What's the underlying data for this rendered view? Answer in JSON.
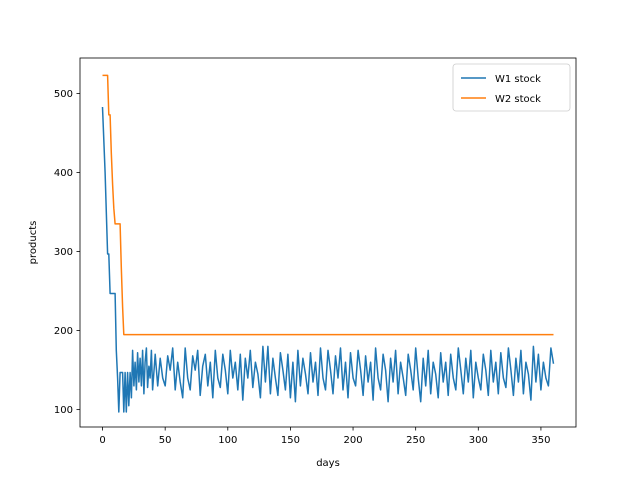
{
  "chart_data": {
    "type": "line",
    "title": "",
    "xlabel": "days",
    "ylabel": "products",
    "xlim": [
      -18,
      378
    ],
    "ylim": [
      78,
      545
    ],
    "xticks": [
      0,
      50,
      100,
      150,
      200,
      250,
      300,
      350
    ],
    "yticks": [
      100,
      200,
      300,
      400,
      500
    ],
    "grid": false,
    "legend_position": "top-right",
    "series": [
      {
        "name": "W1 stock",
        "color": "#1f77b4",
        "points": [
          [
            0,
            483
          ],
          [
            2,
            400
          ],
          [
            4,
            297
          ],
          [
            5,
            297
          ],
          [
            6,
            247
          ],
          [
            7,
            247
          ],
          [
            8,
            247
          ],
          [
            9,
            247
          ],
          [
            10,
            247
          ],
          [
            11,
            175
          ],
          [
            12,
            140
          ],
          [
            13,
            97
          ],
          [
            14,
            147
          ],
          [
            15,
            147
          ],
          [
            16,
            147
          ],
          [
            17,
            97
          ],
          [
            18,
            147
          ],
          [
            19,
            97
          ],
          [
            20,
            147
          ],
          [
            21,
            105
          ],
          [
            22,
            147
          ],
          [
            23,
            115
          ],
          [
            24,
            175
          ],
          [
            25,
            130
          ],
          [
            26,
            160
          ],
          [
            27,
            125
          ],
          [
            28,
            172
          ],
          [
            29,
            135
          ],
          [
            30,
            165
          ],
          [
            31,
            130
          ],
          [
            32,
            175
          ],
          [
            33,
            120
          ],
          [
            34,
            160
          ],
          [
            35,
            178
          ],
          [
            36,
            128
          ],
          [
            37,
            155
          ],
          [
            38,
            140
          ],
          [
            39,
            175
          ],
          [
            40,
            125
          ],
          [
            42,
            170
          ],
          [
            44,
            130
          ],
          [
            46,
            165
          ],
          [
            48,
            140
          ],
          [
            50,
            130
          ],
          [
            52,
            168
          ],
          [
            54,
            150
          ],
          [
            56,
            178
          ],
          [
            58,
            125
          ],
          [
            60,
            160
          ],
          [
            62,
            135
          ],
          [
            64,
            115
          ],
          [
            66,
            178
          ],
          [
            68,
            140
          ],
          [
            70,
            125
          ],
          [
            72,
            168
          ],
          [
            74,
            150
          ],
          [
            76,
            175
          ],
          [
            78,
            118
          ],
          [
            80,
            155
          ],
          [
            82,
            170
          ],
          [
            84,
            130
          ],
          [
            86,
            160
          ],
          [
            88,
            115
          ],
          [
            90,
            175
          ],
          [
            92,
            140
          ],
          [
            94,
            128
          ],
          [
            96,
            170
          ],
          [
            98,
            150
          ],
          [
            100,
            120
          ],
          [
            102,
            175
          ],
          [
            104,
            140
          ],
          [
            106,
            160
          ],
          [
            108,
            125
          ],
          [
            110,
            170
          ],
          [
            112,
            112
          ],
          [
            114,
            165
          ],
          [
            116,
            140
          ],
          [
            118,
            175
          ],
          [
            120,
            128
          ],
          [
            122,
            160
          ],
          [
            124,
            145
          ],
          [
            126,
            115
          ],
          [
            128,
            180
          ],
          [
            130,
            135
          ],
          [
            132,
            180
          ],
          [
            134,
            120
          ],
          [
            136,
            165
          ],
          [
            138,
            140
          ],
          [
            140,
            118
          ],
          [
            142,
            172
          ],
          [
            144,
            150
          ],
          [
            146,
            125
          ],
          [
            148,
            170
          ],
          [
            150,
            115
          ],
          [
            152,
            160
          ],
          [
            154,
            110
          ],
          [
            156,
            175
          ],
          [
            158,
            130
          ],
          [
            160,
            165
          ],
          [
            162,
            145
          ],
          [
            164,
            120
          ],
          [
            166,
            172
          ],
          [
            168,
            135
          ],
          [
            170,
            160
          ],
          [
            172,
            118
          ],
          [
            174,
            178
          ],
          [
            176,
            140
          ],
          [
            178,
            125
          ],
          [
            180,
            175
          ],
          [
            182,
            150
          ],
          [
            184,
            120
          ],
          [
            186,
            168
          ],
          [
            188,
            140
          ],
          [
            190,
            178
          ],
          [
            192,
            125
          ],
          [
            194,
            160
          ],
          [
            196,
            115
          ],
          [
            198,
            172
          ],
          [
            200,
            140
          ],
          [
            202,
            130
          ],
          [
            204,
            175
          ],
          [
            206,
            150
          ],
          [
            208,
            118
          ],
          [
            210,
            168
          ],
          [
            212,
            135
          ],
          [
            214,
            160
          ],
          [
            216,
            112
          ],
          [
            218,
            178
          ],
          [
            220,
            140
          ],
          [
            222,
            125
          ],
          [
            224,
            170
          ],
          [
            226,
            150
          ],
          [
            228,
            110
          ],
          [
            230,
            165
          ],
          [
            232,
            135
          ],
          [
            234,
            175
          ],
          [
            236,
            120
          ],
          [
            238,
            160
          ],
          [
            240,
            140
          ],
          [
            242,
            118
          ],
          [
            244,
            170
          ],
          [
            246,
            150
          ],
          [
            248,
            125
          ],
          [
            250,
            178
          ],
          [
            252,
            140
          ],
          [
            254,
            110
          ],
          [
            256,
            165
          ],
          [
            258,
            130
          ],
          [
            260,
            175
          ],
          [
            262,
            120
          ],
          [
            264,
            160
          ],
          [
            266,
            145
          ],
          [
            268,
            115
          ],
          [
            270,
            172
          ],
          [
            272,
            135
          ],
          [
            274,
            160
          ],
          [
            276,
            118
          ],
          [
            278,
            170
          ],
          [
            280,
            140
          ],
          [
            282,
            125
          ],
          [
            284,
            178
          ],
          [
            286,
            150
          ],
          [
            288,
            120
          ],
          [
            290,
            165
          ],
          [
            292,
            135
          ],
          [
            294,
            175
          ],
          [
            296,
            115
          ],
          [
            298,
            160
          ],
          [
            300,
            140
          ],
          [
            302,
            125
          ],
          [
            304,
            170
          ],
          [
            306,
            150
          ],
          [
            308,
            118
          ],
          [
            310,
            175
          ],
          [
            312,
            135
          ],
          [
            314,
            160
          ],
          [
            316,
            120
          ],
          [
            318,
            172
          ],
          [
            320,
            140
          ],
          [
            322,
            128
          ],
          [
            324,
            178
          ],
          [
            326,
            150
          ],
          [
            328,
            118
          ],
          [
            330,
            165
          ],
          [
            332,
            135
          ],
          [
            334,
            175
          ],
          [
            336,
            120
          ],
          [
            338,
            160
          ],
          [
            340,
            145
          ],
          [
            342,
            112
          ],
          [
            344,
            180
          ],
          [
            346,
            135
          ],
          [
            348,
            170
          ],
          [
            350,
            125
          ],
          [
            352,
            160
          ],
          [
            354,
            140
          ],
          [
            356,
            130
          ],
          [
            358,
            178
          ],
          [
            360,
            158
          ]
        ]
      },
      {
        "name": "W2 stock",
        "color": "#ff7f0e",
        "points": [
          [
            0,
            523
          ],
          [
            4,
            523
          ],
          [
            5,
            473
          ],
          [
            6,
            473
          ],
          [
            7,
            425
          ],
          [
            8,
            385
          ],
          [
            9,
            355
          ],
          [
            10,
            335
          ],
          [
            13,
            335
          ],
          [
            14,
            335
          ],
          [
            15,
            280
          ],
          [
            16,
            230
          ],
          [
            17,
            195
          ],
          [
            360,
            195
          ]
        ]
      }
    ]
  }
}
